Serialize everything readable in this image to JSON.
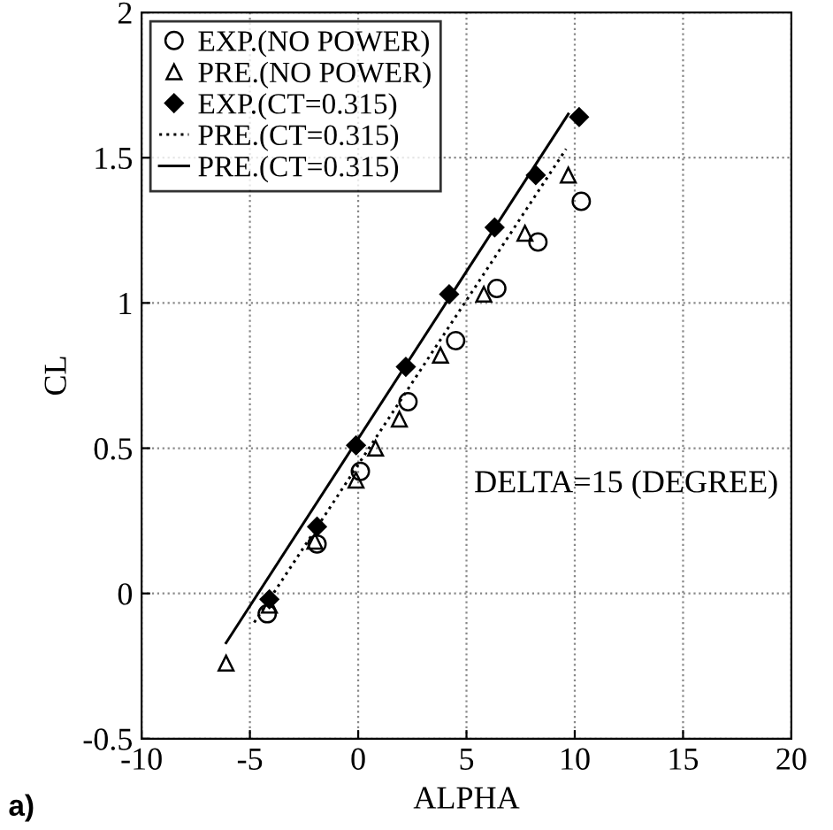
{
  "chart_data": {
    "type": "scatter",
    "xlabel": "ALPHA",
    "ylabel": "CL",
    "annotations": [
      "DELTA=15 (DEGREE)",
      "a)"
    ],
    "xlim": [
      -10,
      20
    ],
    "ylim": [
      -0.5,
      2
    ],
    "xticks": [
      -10,
      -5,
      0,
      5,
      10,
      15,
      20
    ],
    "yticks": [
      -0.5,
      0,
      0.5,
      1,
      1.5,
      2
    ],
    "grid": true,
    "legend": "top left",
    "series": [
      {
        "name": "EXP.(NO POWER)",
        "marker": "circle",
        "color": "#000000",
        "x": [
          -4.2,
          -1.9,
          0.1,
          2.3,
          4.5,
          6.4,
          8.3,
          10.3
        ],
        "values": [
          -0.07,
          0.17,
          0.42,
          0.66,
          0.87,
          1.05,
          1.21,
          1.35
        ]
      },
      {
        "name": "PRE.(NO POWER)",
        "marker": "triangle",
        "color": "#000000",
        "x": [
          -6.1,
          -4.1,
          -2.0,
          -0.1,
          0.8,
          1.9,
          3.8,
          5.8,
          7.7,
          9.7
        ],
        "values": [
          -0.24,
          -0.04,
          0.18,
          0.39,
          0.5,
          0.6,
          0.82,
          1.03,
          1.24,
          1.44
        ]
      },
      {
        "name": "EXP.(CT=0.315)",
        "marker": "diamond",
        "color": "#000000",
        "x": [
          -4.1,
          -1.9,
          -0.1,
          2.2,
          4.2,
          6.3,
          8.2,
          10.2
        ],
        "values": [
          -0.02,
          0.23,
          0.51,
          0.78,
          1.03,
          1.26,
          1.44,
          1.64
        ]
      },
      {
        "name": "PRE.(CT=0.315)",
        "type": "line",
        "line_style": "dotted",
        "color": "#000000",
        "x": [
          -4.8,
          9.6
        ],
        "values": [
          -0.1,
          1.53
        ]
      },
      {
        "name": "PRE.(CT=0.315)",
        "type": "line",
        "line_style": "solid",
        "color": "#000000",
        "x": [
          -6.1,
          9.7
        ],
        "values": [
          -0.17,
          1.65
        ]
      }
    ]
  }
}
